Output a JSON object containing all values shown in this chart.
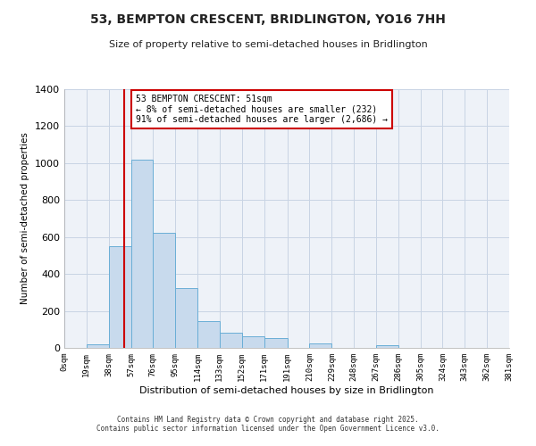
{
  "title": "53, BEMPTON CRESCENT, BRIDLINGTON, YO16 7HH",
  "subtitle": "Size of property relative to semi-detached houses in Bridlington",
  "xlabel": "Distribution of semi-detached houses by size in Bridlington",
  "ylabel": "Number of semi-detached properties",
  "footnote1": "Contains HM Land Registry data © Crown copyright and database right 2025.",
  "footnote2": "Contains public sector information licensed under the Open Government Licence v3.0.",
  "bin_edges": [
    0,
    19,
    38,
    57,
    76,
    95,
    114,
    133,
    152,
    171,
    191,
    210,
    229,
    248,
    267,
    286,
    305,
    324,
    343,
    362,
    381
  ],
  "bin_labels": [
    "0sqm",
    "19sqm",
    "38sqm",
    "57sqm",
    "76sqm",
    "95sqm",
    "114sqm",
    "133sqm",
    "152sqm",
    "171sqm",
    "191sqm",
    "210sqm",
    "229sqm",
    "248sqm",
    "267sqm",
    "286sqm",
    "305sqm",
    "324sqm",
    "343sqm",
    "362sqm",
    "381sqm"
  ],
  "bar_heights": [
    0,
    20,
    550,
    1020,
    625,
    325,
    145,
    80,
    65,
    55,
    0,
    25,
    0,
    0,
    15,
    0,
    0,
    0,
    0,
    0
  ],
  "bar_color": "#c8daed",
  "bar_edge_color": "#6aaed6",
  "property_line_x": 51,
  "red_line_color": "#cc0000",
  "annotation_title": "53 BEMPTON CRESCENT: 51sqm",
  "annotation_line1": "← 8% of semi-detached houses are smaller (232)",
  "annotation_line2": "91% of semi-detached houses are larger (2,686) →",
  "annotation_box_color": "#cc0000",
  "ylim": [
    0,
    1400
  ],
  "yticks": [
    0,
    200,
    400,
    600,
    800,
    1000,
    1200,
    1400
  ],
  "xlim": [
    0,
    381
  ],
  "background_color": "#ffffff",
  "plot_bg_color": "#eef2f8",
  "grid_color": "#c8d4e4"
}
